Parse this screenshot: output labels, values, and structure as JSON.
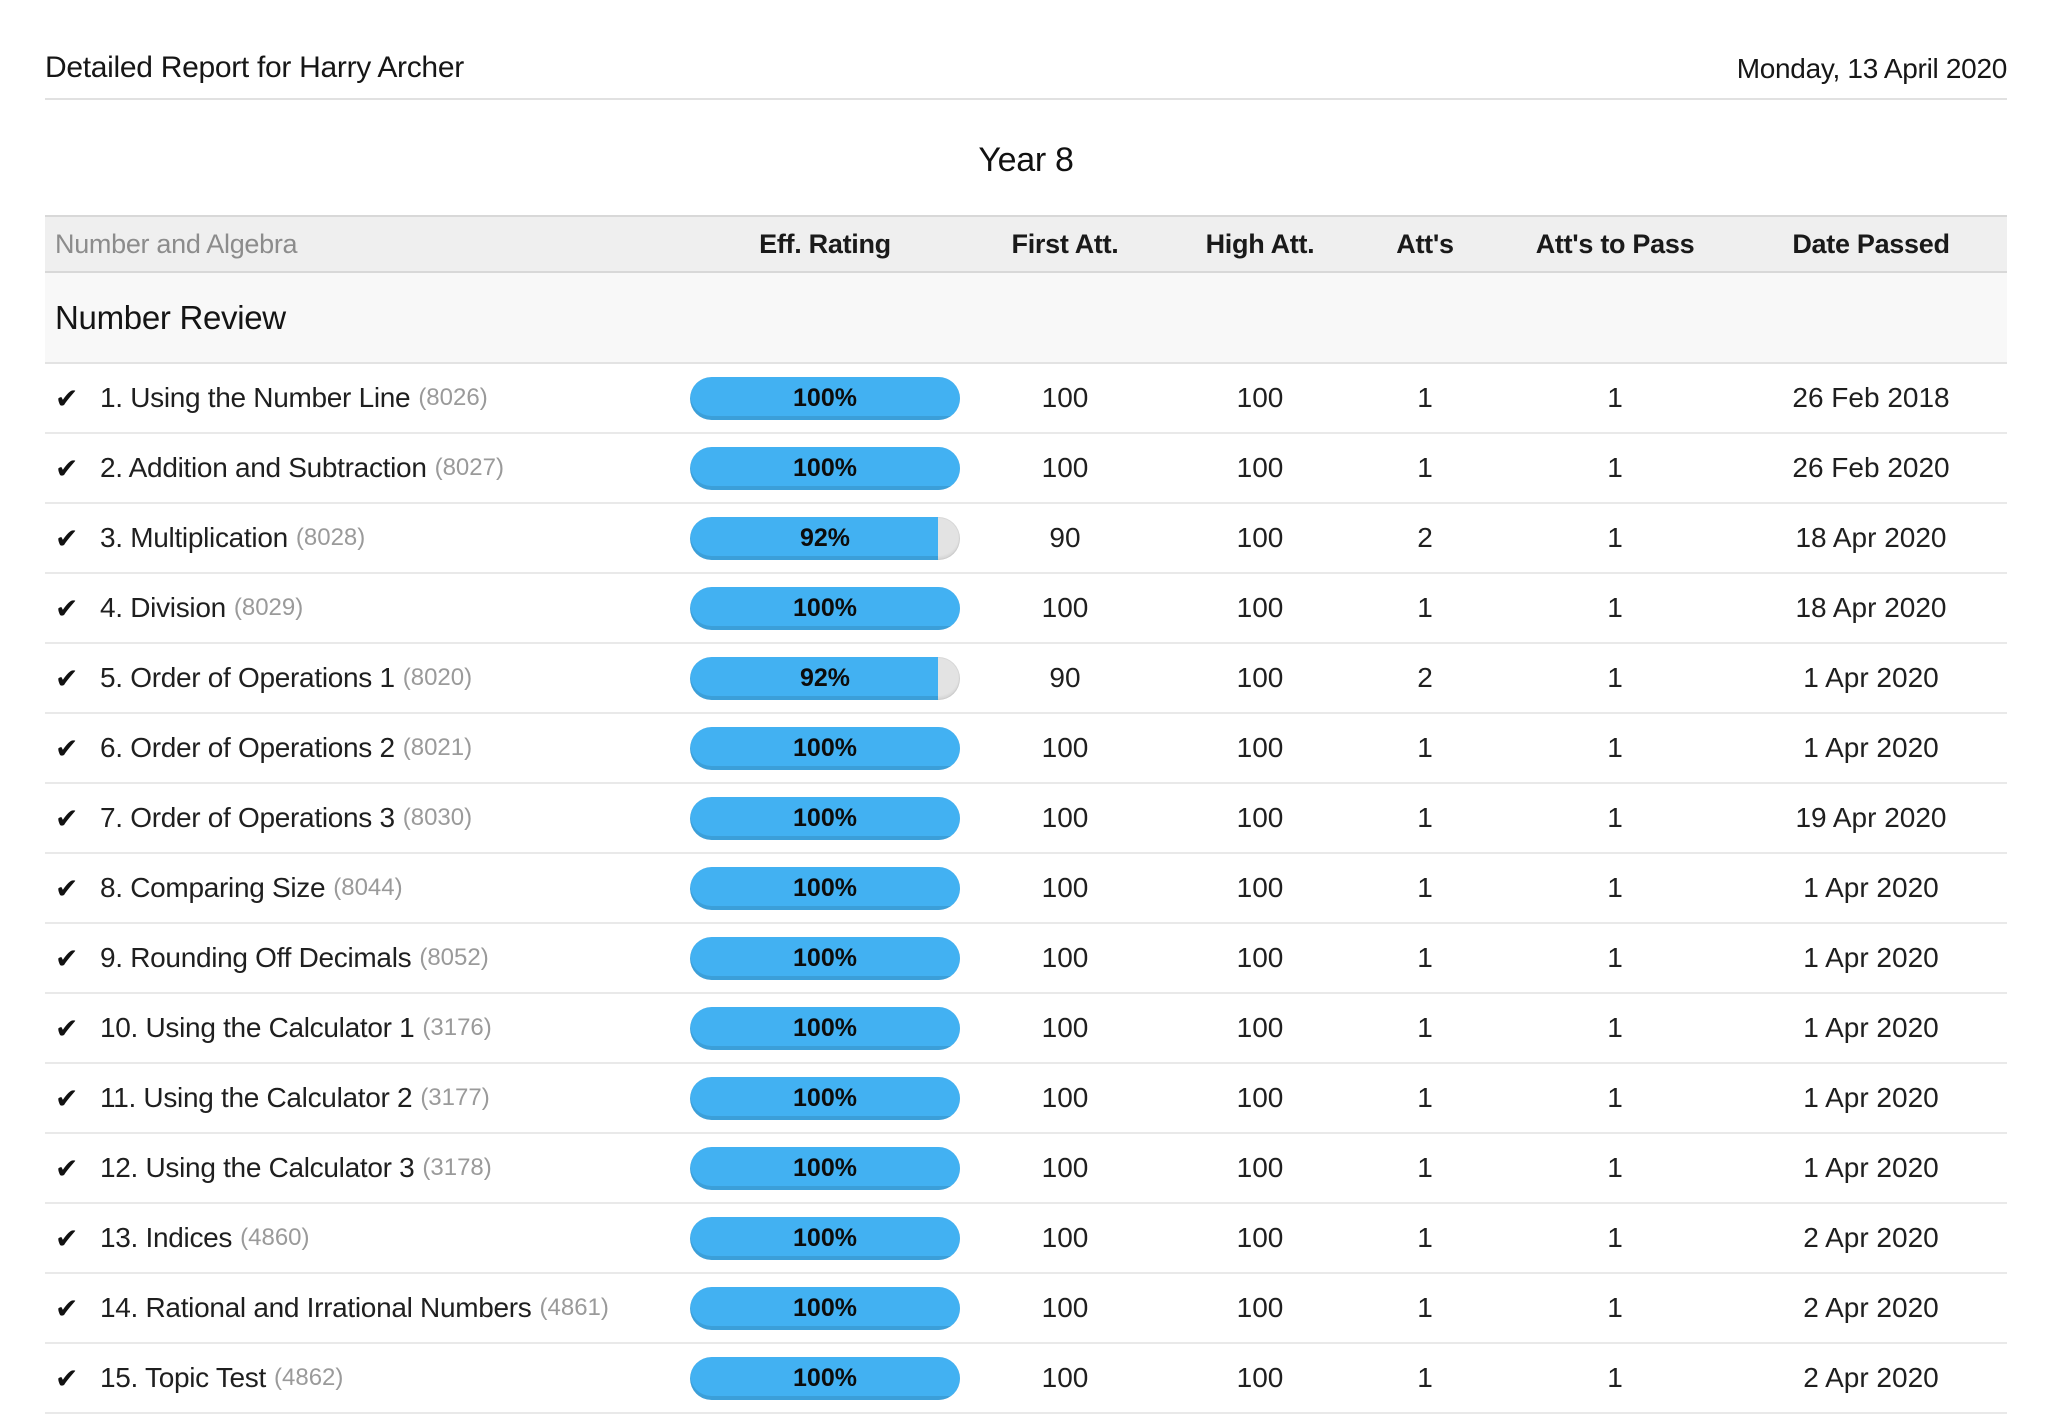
{
  "page": {
    "title": "Detailed Report for Harry Archer",
    "date": "Monday, 13 April 2020",
    "year_title": "Year 8"
  },
  "colors": {
    "bar_fill_blue": "#42b1f2",
    "bar_track_gray": "#e3e3e3",
    "header_bg": "#efefef",
    "section_bg": "#f8f8f8"
  },
  "table": {
    "strand_label": "Number and Algebra",
    "columns": {
      "eff_rating": "Eff. Rating",
      "first_att": "First Att.",
      "high_att": "High Att.",
      "atts": "Att's",
      "atts_to_pass": "Att's to Pass",
      "date_passed": "Date Passed"
    },
    "section_title": "Number Review",
    "check_icon": "✔",
    "rows": [
      {
        "title": "1. Using the Number Line",
        "code": "(8026)",
        "rating_pct": 100,
        "rating_label": "100%",
        "first_att": "100",
        "high_att": "100",
        "atts": "1",
        "atts_to_pass": "1",
        "date_passed": "26 Feb 2018"
      },
      {
        "title": "2. Addition and Subtraction",
        "code": "(8027)",
        "rating_pct": 100,
        "rating_label": "100%",
        "first_att": "100",
        "high_att": "100",
        "atts": "1",
        "atts_to_pass": "1",
        "date_passed": "26 Feb 2020"
      },
      {
        "title": "3. Multiplication",
        "code": "(8028)",
        "rating_pct": 92,
        "rating_label": "92%",
        "first_att": "90",
        "high_att": "100",
        "atts": "2",
        "atts_to_pass": "1",
        "date_passed": "18 Apr 2020"
      },
      {
        "title": "4. Division",
        "code": "(8029)",
        "rating_pct": 100,
        "rating_label": "100%",
        "first_att": "100",
        "high_att": "100",
        "atts": "1",
        "atts_to_pass": "1",
        "date_passed": "18 Apr 2020"
      },
      {
        "title": "5. Order of Operations 1",
        "code": "(8020)",
        "rating_pct": 92,
        "rating_label": "92%",
        "first_att": "90",
        "high_att": "100",
        "atts": "2",
        "atts_to_pass": "1",
        "date_passed": "1 Apr 2020"
      },
      {
        "title": "6. Order of Operations 2",
        "code": "(8021)",
        "rating_pct": 100,
        "rating_label": "100%",
        "first_att": "100",
        "high_att": "100",
        "atts": "1",
        "atts_to_pass": "1",
        "date_passed": "1 Apr 2020"
      },
      {
        "title": "7. Order of Operations 3",
        "code": "(8030)",
        "rating_pct": 100,
        "rating_label": "100%",
        "first_att": "100",
        "high_att": "100",
        "atts": "1",
        "atts_to_pass": "1",
        "date_passed": "19 Apr 2020"
      },
      {
        "title": "8. Comparing Size",
        "code": "(8044)",
        "rating_pct": 100,
        "rating_label": "100%",
        "first_att": "100",
        "high_att": "100",
        "atts": "1",
        "atts_to_pass": "1",
        "date_passed": "1 Apr 2020"
      },
      {
        "title": "9. Rounding Off Decimals",
        "code": "(8052)",
        "rating_pct": 100,
        "rating_label": "100%",
        "first_att": "100",
        "high_att": "100",
        "atts": "1",
        "atts_to_pass": "1",
        "date_passed": "1 Apr 2020"
      },
      {
        "title": "10. Using the Calculator 1",
        "code": "(3176)",
        "rating_pct": 100,
        "rating_label": "100%",
        "first_att": "100",
        "high_att": "100",
        "atts": "1",
        "atts_to_pass": "1",
        "date_passed": "1 Apr 2020"
      },
      {
        "title": "11. Using the Calculator 2",
        "code": "(3177)",
        "rating_pct": 100,
        "rating_label": "100%",
        "first_att": "100",
        "high_att": "100",
        "atts": "1",
        "atts_to_pass": "1",
        "date_passed": "1 Apr 2020"
      },
      {
        "title": "12. Using the Calculator 3",
        "code": "(3178)",
        "rating_pct": 100,
        "rating_label": "100%",
        "first_att": "100",
        "high_att": "100",
        "atts": "1",
        "atts_to_pass": "1",
        "date_passed": "1 Apr 2020"
      },
      {
        "title": "13. Indices",
        "code": "(4860)",
        "rating_pct": 100,
        "rating_label": "100%",
        "first_att": "100",
        "high_att": "100",
        "atts": "1",
        "atts_to_pass": "1",
        "date_passed": "2 Apr 2020"
      },
      {
        "title": "14. Rational and Irrational Numbers",
        "code": "(4861)",
        "rating_pct": 100,
        "rating_label": "100%",
        "first_att": "100",
        "high_att": "100",
        "atts": "1",
        "atts_to_pass": "1",
        "date_passed": "2 Apr 2020"
      },
      {
        "title": "15. Topic Test",
        "code": "(4862)",
        "rating_pct": 100,
        "rating_label": "100%",
        "first_att": "100",
        "high_att": "100",
        "atts": "1",
        "atts_to_pass": "1",
        "date_passed": "2 Apr 2020"
      }
    ]
  }
}
